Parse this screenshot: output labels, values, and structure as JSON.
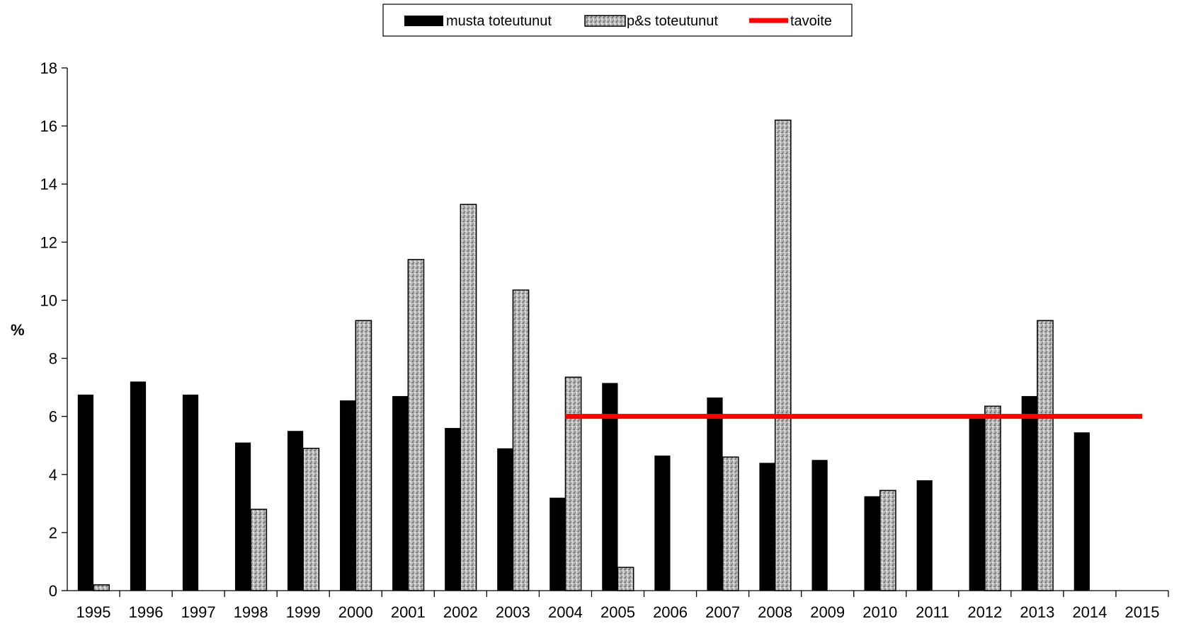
{
  "chart_data": {
    "type": "bar",
    "ylabel": "%",
    "xlabel": "",
    "title": "",
    "ylim": [
      0,
      18
    ],
    "yticks": [
      0,
      2,
      4,
      6,
      8,
      10,
      12,
      14,
      16,
      18
    ],
    "grid": false,
    "legend_position": "top-center",
    "categories": [
      "1995",
      "1996",
      "1997",
      "1998",
      "1999",
      "2000",
      "2001",
      "2002",
      "2003",
      "2004",
      "2005",
      "2006",
      "2007",
      "2008",
      "2009",
      "2010",
      "2011",
      "2012",
      "2013",
      "2014",
      "2015"
    ],
    "series": [
      {
        "name": "musta toteutunut",
        "kind": "bar",
        "color": "#000000",
        "values": [
          6.75,
          7.2,
          6.75,
          5.1,
          5.5,
          6.55,
          6.7,
          5.6,
          4.9,
          3.2,
          7.15,
          4.65,
          6.65,
          4.4,
          4.5,
          3.25,
          3.8,
          6.0,
          6.7,
          5.45,
          null
        ]
      },
      {
        "name": "p&s toteutunut",
        "kind": "bar",
        "color": "#b4b4b4",
        "pattern": "speckled-gray",
        "values": [
          0.2,
          null,
          null,
          2.8,
          4.9,
          9.3,
          11.4,
          13.3,
          10.35,
          7.35,
          0.8,
          null,
          4.6,
          16.2,
          null,
          3.45,
          null,
          6.35,
          9.3,
          null,
          null
        ]
      },
      {
        "name": "tavoite",
        "kind": "line",
        "color": "#ff0000",
        "values": [
          null,
          null,
          null,
          null,
          null,
          null,
          null,
          null,
          null,
          6,
          6,
          6,
          6,
          6,
          6,
          6,
          6,
          6,
          6,
          6,
          6
        ]
      }
    ]
  }
}
